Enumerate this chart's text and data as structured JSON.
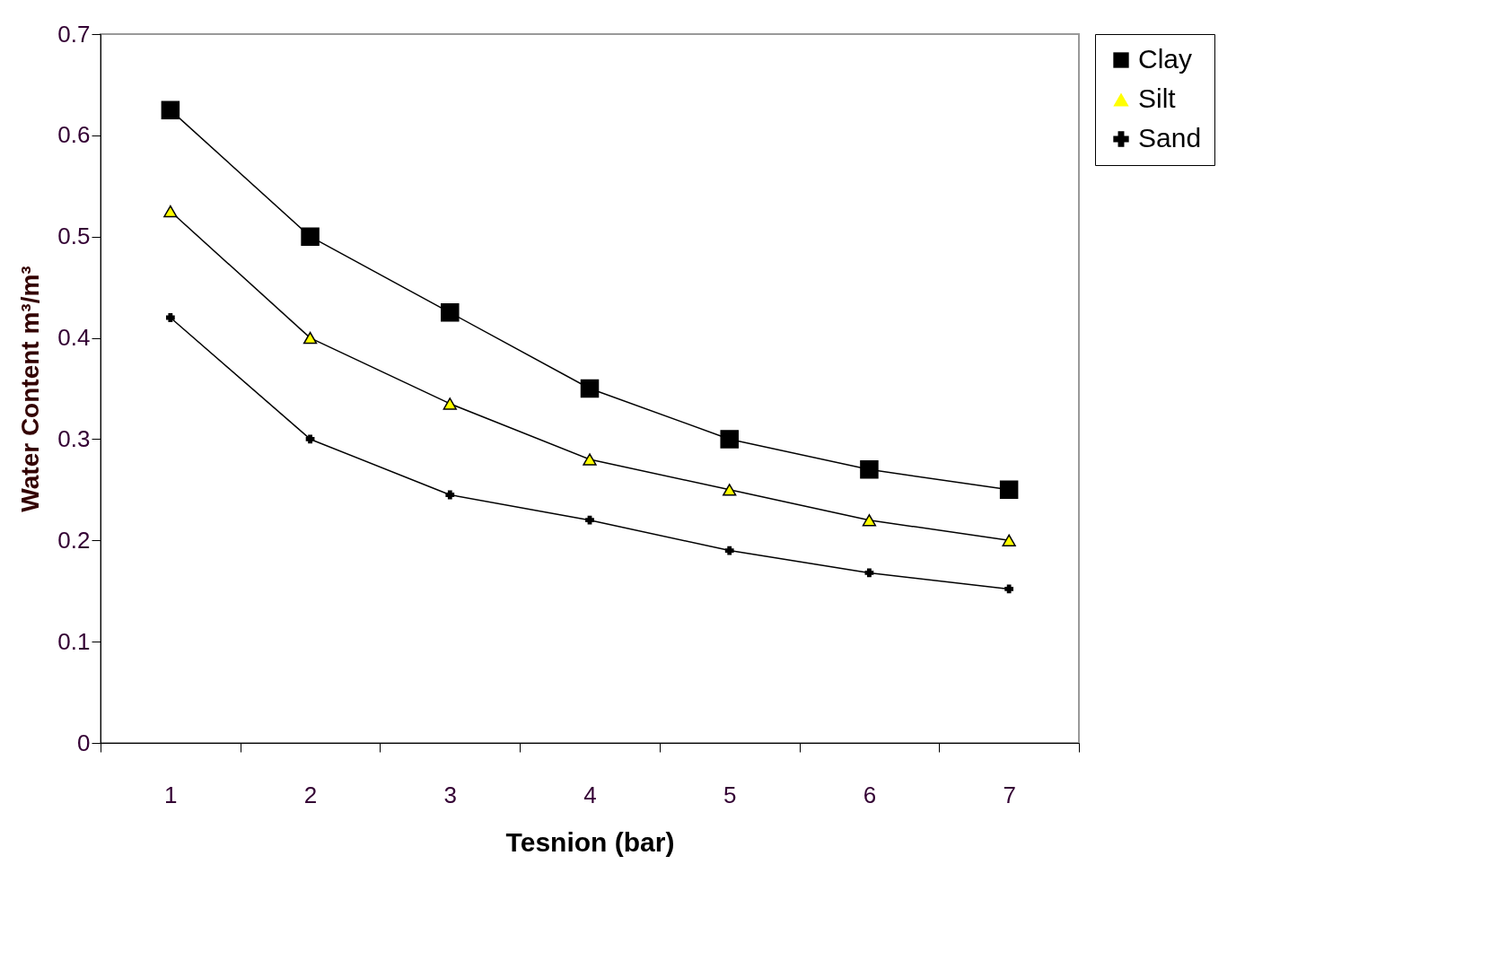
{
  "chart_data": {
    "type": "line",
    "xlabel": "Tesnion (bar)",
    "ylabel": "Water Content m³/m³",
    "categories": [
      "1",
      "2",
      "3",
      "4",
      "5",
      "6",
      "7"
    ],
    "series": [
      {
        "name": "Clay",
        "color": "#000000",
        "marker": "square",
        "values": [
          0.625,
          0.5,
          0.425,
          0.35,
          0.3,
          0.27,
          0.25
        ]
      },
      {
        "name": "Silt",
        "color": "#ffff00",
        "marker": "triangle",
        "values": [
          0.525,
          0.4,
          0.335,
          0.28,
          0.25,
          0.22,
          0.2
        ]
      },
      {
        "name": "Sand",
        "color": "#000000",
        "marker": "cross",
        "values": [
          0.42,
          0.3,
          0.245,
          0.22,
          0.19,
          0.168,
          0.152
        ]
      }
    ],
    "ylim": [
      0,
      0.7
    ],
    "yticks": [
      0,
      0.1,
      0.2,
      0.3,
      0.4,
      0.5,
      0.6,
      0.7
    ],
    "grid": false,
    "legend": "right",
    "line_style": "solid"
  }
}
